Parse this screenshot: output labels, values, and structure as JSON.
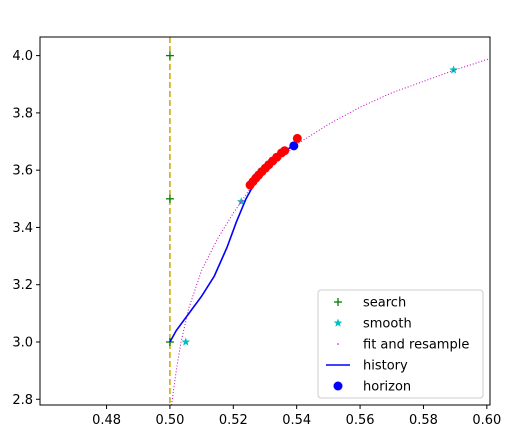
{
  "chart_data": {
    "type": "line",
    "title": "",
    "xlabel": "",
    "ylabel": "",
    "xlim": [
      0.459,
      0.601
    ],
    "ylim": [
      2.78,
      4.065
    ],
    "x_ticks": [
      0.48,
      0.5,
      0.52,
      0.54,
      0.56,
      0.58,
      0.6
    ],
    "x_tick_labels": [
      "0.48",
      "0.50",
      "0.52",
      "0.54",
      "0.56",
      "0.58",
      "0.60"
    ],
    "y_ticks": [
      2.8,
      3.0,
      3.2,
      3.4,
      3.6,
      3.8,
      4.0
    ],
    "y_tick_labels": [
      "2.8",
      "3.0",
      "3.2",
      "3.4",
      "3.6",
      "3.8",
      "4.0"
    ],
    "grid": false,
    "legend_position": "lower right",
    "vline": {
      "x": 0.5,
      "color": "#c8a800",
      "style": "dashed"
    },
    "series": [
      {
        "name": "search",
        "kind": "marker",
        "marker": "plus",
        "color": "#007f00",
        "points": [
          [
            0.5,
            4.0
          ],
          [
            0.5,
            3.5
          ],
          [
            0.5,
            3.0
          ]
        ]
      },
      {
        "name": "smooth",
        "kind": "marker",
        "marker": "star",
        "color": "#00bfbf",
        "points": [
          [
            0.505,
            3.0
          ],
          [
            0.5225,
            3.49
          ],
          [
            0.5895,
            3.95
          ]
        ]
      },
      {
        "name": "fit and resample",
        "kind": "dotted",
        "color": "#bf00bf",
        "points": [
          [
            0.5005,
            2.78
          ],
          [
            0.502,
            2.9
          ],
          [
            0.5035,
            3.0
          ],
          [
            0.506,
            3.12
          ],
          [
            0.51,
            3.25
          ],
          [
            0.515,
            3.36
          ],
          [
            0.52,
            3.45
          ],
          [
            0.525,
            3.53
          ],
          [
            0.53,
            3.59
          ],
          [
            0.535,
            3.64
          ],
          [
            0.54,
            3.69
          ],
          [
            0.55,
            3.76
          ],
          [
            0.56,
            3.82
          ],
          [
            0.57,
            3.87
          ],
          [
            0.58,
            3.91
          ],
          [
            0.59,
            3.95
          ],
          [
            0.601,
            3.99
          ]
        ]
      },
      {
        "name": "history",
        "kind": "line",
        "color": "#0000ff",
        "points": [
          [
            0.5,
            3.0
          ],
          [
            0.502,
            3.04
          ],
          [
            0.506,
            3.1
          ],
          [
            0.51,
            3.16
          ],
          [
            0.514,
            3.23
          ],
          [
            0.518,
            3.33
          ],
          [
            0.521,
            3.42
          ],
          [
            0.524,
            3.5
          ],
          [
            0.527,
            3.56
          ],
          [
            0.531,
            3.61
          ],
          [
            0.535,
            3.65
          ],
          [
            0.539,
            3.69
          ],
          [
            0.54,
            3.71
          ]
        ]
      },
      {
        "name": "horizon",
        "kind": "marker",
        "marker": "circle",
        "color": "#0000ff",
        "points": [
          [
            0.5391,
            3.685
          ]
        ]
      },
      {
        "name": "",
        "kind": "marker",
        "marker": "circle",
        "color": "#ff0000",
        "points": [
          [
            0.5253,
            3.548
          ],
          [
            0.5262,
            3.56
          ],
          [
            0.5271,
            3.572
          ],
          [
            0.528,
            3.583
          ],
          [
            0.529,
            3.595
          ],
          [
            0.5301,
            3.607
          ],
          [
            0.5312,
            3.619
          ],
          [
            0.5324,
            3.632
          ],
          [
            0.5337,
            3.645
          ],
          [
            0.5352,
            3.66
          ],
          [
            0.5362,
            3.668
          ],
          [
            0.5402,
            3.711
          ]
        ]
      }
    ]
  }
}
